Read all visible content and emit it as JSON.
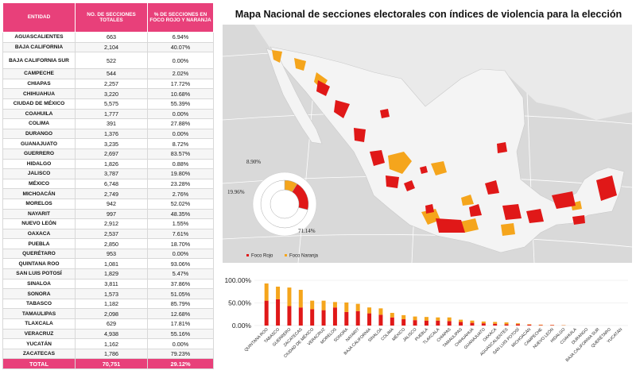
{
  "table": {
    "headers": [
      "ENTIDAD",
      "NO. DE SECCIONES TOTALES",
      "% DE SECCIONES EN FOCO ROJO Y NARANJA"
    ],
    "rows": [
      {
        "entidad": "AGUASCALIENTES",
        "secciones": "663",
        "pct": "6.94%"
      },
      {
        "entidad": "BAJA CALIFORNIA",
        "secciones": "2,104",
        "pct": "40.07%"
      },
      {
        "entidad": "BAJA CALIFORNIA SUR",
        "secciones": "522",
        "pct": "0.00%"
      },
      {
        "entidad": "CAMPECHE",
        "secciones": "544",
        "pct": "2.02%"
      },
      {
        "entidad": "CHIAPAS",
        "secciones": "2,257",
        "pct": "17.72%"
      },
      {
        "entidad": "CHIHUAHUA",
        "secciones": "3,220",
        "pct": "10.68%"
      },
      {
        "entidad": "CIUDAD DE MÉXICO",
        "secciones": "5,575",
        "pct": "55.39%"
      },
      {
        "entidad": "COAHUILA",
        "secciones": "1,777",
        "pct": "0.00%"
      },
      {
        "entidad": "COLIMA",
        "secciones": "391",
        "pct": "27.88%"
      },
      {
        "entidad": "DURANGO",
        "secciones": "1,376",
        "pct": "0.00%"
      },
      {
        "entidad": "GUANAJUATO",
        "secciones": "3,235",
        "pct": "8.72%"
      },
      {
        "entidad": "GUERRERO",
        "secciones": "2,697",
        "pct": "83.57%"
      },
      {
        "entidad": "HIDALGO",
        "secciones": "1,826",
        "pct": "0.88%"
      },
      {
        "entidad": "JALISCO",
        "secciones": "3,787",
        "pct": "19.80%"
      },
      {
        "entidad": "MÉXICO",
        "secciones": "6,748",
        "pct": "23.28%"
      },
      {
        "entidad": "MICHOACÁN",
        "secciones": "2,749",
        "pct": "2.76%"
      },
      {
        "entidad": "MORELOS",
        "secciones": "942",
        "pct": "52.02%"
      },
      {
        "entidad": "NAYARIT",
        "secciones": "997",
        "pct": "48.35%"
      },
      {
        "entidad": "NUEVO LEÓN",
        "secciones": "2,912",
        "pct": "1.55%"
      },
      {
        "entidad": "OAXACA",
        "secciones": "2,537",
        "pct": "7.61%"
      },
      {
        "entidad": "PUEBLA",
        "secciones": "2,850",
        "pct": "18.70%"
      },
      {
        "entidad": "QUERÉTARO",
        "secciones": "953",
        "pct": "0.00%"
      },
      {
        "entidad": "QUINTANA ROO",
        "secciones": "1,081",
        "pct": "93.06%"
      },
      {
        "entidad": "SAN LUIS POTOSÍ",
        "secciones": "1,829",
        "pct": "5.47%"
      },
      {
        "entidad": "SINALOA",
        "secciones": "3,811",
        "pct": "37.86%"
      },
      {
        "entidad": "SONORA",
        "secciones": "1,573",
        "pct": "51.05%"
      },
      {
        "entidad": "TABASCO",
        "secciones": "1,182",
        "pct": "85.79%"
      },
      {
        "entidad": "TAMAULIPAS",
        "secciones": "2,098",
        "pct": "12.68%"
      },
      {
        "entidad": "TLAXCALA",
        "secciones": "629",
        "pct": "17.81%"
      },
      {
        "entidad": "VERACRUZ",
        "secciones": "4,938",
        "pct": "55.16%"
      },
      {
        "entidad": "YUCATÁN",
        "secciones": "1,162",
        "pct": "0.00%"
      },
      {
        "entidad": "ZACATECAS",
        "secciones": "1,786",
        "pct": "79.23%"
      }
    ],
    "total": {
      "entidad": "TOTAL",
      "secciones": "70,751",
      "pct": "29.12%"
    }
  },
  "title": "Mapa Nacional de secciones electorales con índices de violencia para la elección",
  "colors": {
    "rojo": "#e01818",
    "naranja": "#f5a51c",
    "header": "#e8407a",
    "land": "#f3f3f3",
    "water": "#d9d9d9"
  },
  "map": {
    "donut": {
      "labels": [
        "8.90%",
        "19.96%",
        "71.14%"
      ],
      "values": [
        8.9,
        19.96,
        71.14
      ]
    },
    "legend": [
      {
        "label": "Foco Rojo",
        "color": "#e01818"
      },
      {
        "label": "Foco Naranja",
        "color": "#f5a51c"
      }
    ]
  },
  "chart_data": {
    "type": "bar",
    "stacked": true,
    "yticks": [
      "100.00%",
      "50.00%",
      "0.00%"
    ],
    "ylim": [
      0,
      100
    ],
    "categories": [
      "QUINTANA ROO",
      "TABASCO",
      "GUERRERO",
      "ZACATECAS",
      "CIUDAD DE MÉXICO",
      "VERACRUZ",
      "MORELOS",
      "SONORA",
      "NAYARIT",
      "BAJA CALIFORNIA",
      "SINALOA",
      "COLIMA",
      "MÉXICO",
      "JALISCO",
      "PUEBLA",
      "TLAXCALA",
      "CHIAPAS",
      "TAMAULIPAS",
      "CHIHUAHUA",
      "GUANAJUATO",
      "OAXACA",
      "AGUASCALIENTES",
      "SAN LUIS POTOSÍ",
      "MICHOACÁN",
      "CAMPECHE",
      "NUEVO LEÓN",
      "HIDALGO",
      "COAHUILA",
      "DURANGO",
      "BAJA CALIFORNIA SUR",
      "QUERÉTARO",
      "YUCATÁN"
    ],
    "series": [
      {
        "name": "Foco Rojo",
        "values": [
          55,
          58,
          43,
          40,
          36,
          34,
          40,
          30,
          32,
          27,
          24,
          18,
          14,
          12,
          11,
          11,
          10,
          8,
          6,
          5,
          4,
          3,
          3,
          2,
          1,
          1,
          0.5,
          0,
          0,
          0,
          0,
          0
        ]
      },
      {
        "name": "Foco Naranja",
        "values": [
          38,
          28,
          41,
          39,
          19,
          21,
          12,
          21,
          16,
          13,
          14,
          10,
          9,
          8,
          8,
          7,
          8,
          5,
          5,
          4,
          4,
          4,
          2,
          1,
          1,
          0.5,
          0.5,
          0,
          0,
          0,
          0,
          0
        ]
      }
    ]
  }
}
